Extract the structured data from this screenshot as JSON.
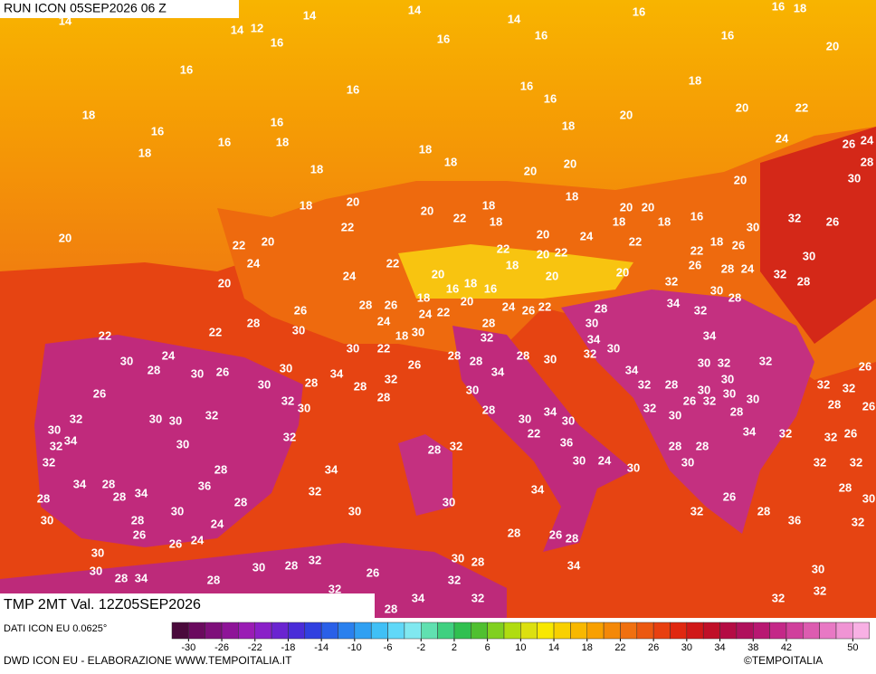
{
  "header": {
    "title": "RUN ICON 05SEP2026 06 Z"
  },
  "footer": {
    "product": "TMP 2MT Val. 12Z05SEP2026",
    "source": "DATI ICON EU 0.0625°",
    "credit": "DWD ICON EU - ELABORAZIONE WWW.TEMPOITALIA.IT",
    "brand": "©TEMPOITALIA"
  },
  "legend": {
    "ticks": [
      -30,
      -26,
      -22,
      -18,
      -14,
      -10,
      -6,
      -2,
      2,
      6,
      10,
      14,
      18,
      22,
      26,
      30,
      34,
      38,
      42,
      50
    ],
    "colors": [
      "#4a0a3c",
      "#6a0a5e",
      "#7e0f7a",
      "#8e1498",
      "#9a1cb4",
      "#8a20c8",
      "#6a24d0",
      "#4a2cd8",
      "#3040e0",
      "#2a60e8",
      "#2a80ee",
      "#30a0f2",
      "#40c0f6",
      "#60d8f8",
      "#80e8f0",
      "#60e0b0",
      "#40d080",
      "#30c050",
      "#50c030",
      "#80d020",
      "#b0dc10",
      "#dce010",
      "#f8e800",
      "#f8d000",
      "#f8b800",
      "#f8a000",
      "#f48808",
      "#f07010",
      "#ec5810",
      "#e84010",
      "#e02810",
      "#d01818",
      "#c01028",
      "#b40c44",
      "#b0105c",
      "#b81872",
      "#c42888",
      "#d0409c",
      "#dc5cb0",
      "#e878c4",
      "#f094d4",
      "#f8b0e4"
    ]
  },
  "map_labels": [
    14,
    14,
    14,
    14,
    16,
    16,
    18,
    14,
    12,
    16,
    16,
    16,
    16,
    20,
    16,
    16,
    16,
    16,
    18,
    18,
    16,
    16,
    16,
    18,
    18,
    18,
    20,
    20,
    22,
    24,
    26,
    24,
    28,
    30,
    18,
    18,
    18,
    20,
    20,
    20,
    18,
    20,
    20,
    22,
    18,
    18,
    18,
    20,
    20,
    18,
    18,
    16,
    30,
    32,
    26,
    20,
    22,
    22,
    20,
    20,
    24,
    22,
    22,
    20,
    22,
    18,
    22,
    26,
    24,
    22,
    18,
    26,
    28,
    24,
    30,
    20,
    24,
    20,
    20,
    20,
    16,
    18,
    16,
    32,
    28,
    32,
    30,
    28,
    18,
    28,
    26,
    26,
    28,
    34,
    32,
    22,
    24,
    20,
    24,
    26,
    22,
    28,
    24,
    28,
    30,
    22,
    22,
    30,
    18,
    30,
    32,
    34,
    34,
    30,
    22,
    30,
    24,
    30,
    28,
    28,
    28,
    30,
    32,
    30,
    32,
    32,
    26,
    28,
    30,
    26,
    30,
    26,
    34,
    34,
    34,
    28,
    30,
    28,
    32,
    28,
    30,
    30,
    32,
    28,
    30,
    32,
    26,
    32,
    30,
    28,
    26,
    32,
    30,
    30,
    32,
    26,
    32,
    28,
    30,
    28,
    32,
    30,
    30,
    32,
    30,
    34,
    30,
    30,
    34,
    22,
    34,
    32,
    32,
    26,
    32,
    30,
    32,
    36,
    28,
    32,
    28,
    28,
    32,
    30,
    24,
    30,
    30,
    32,
    32,
    28,
    34,
    34,
    28,
    36,
    28,
    34,
    32,
    34,
    28,
    28,
    30,
    26,
    28,
    30,
    30,
    30,
    32,
    28,
    30,
    28,
    24,
    36,
    32,
    26,
    26,
    24,
    28,
    26,
    28,
    30,
    32,
    30,
    28,
    30,
    28,
    34,
    30,
    30,
    28,
    34,
    28,
    26,
    32,
    32,
    34,
    32,
    32,
    32,
    28,
    28,
    30
  ]
}
